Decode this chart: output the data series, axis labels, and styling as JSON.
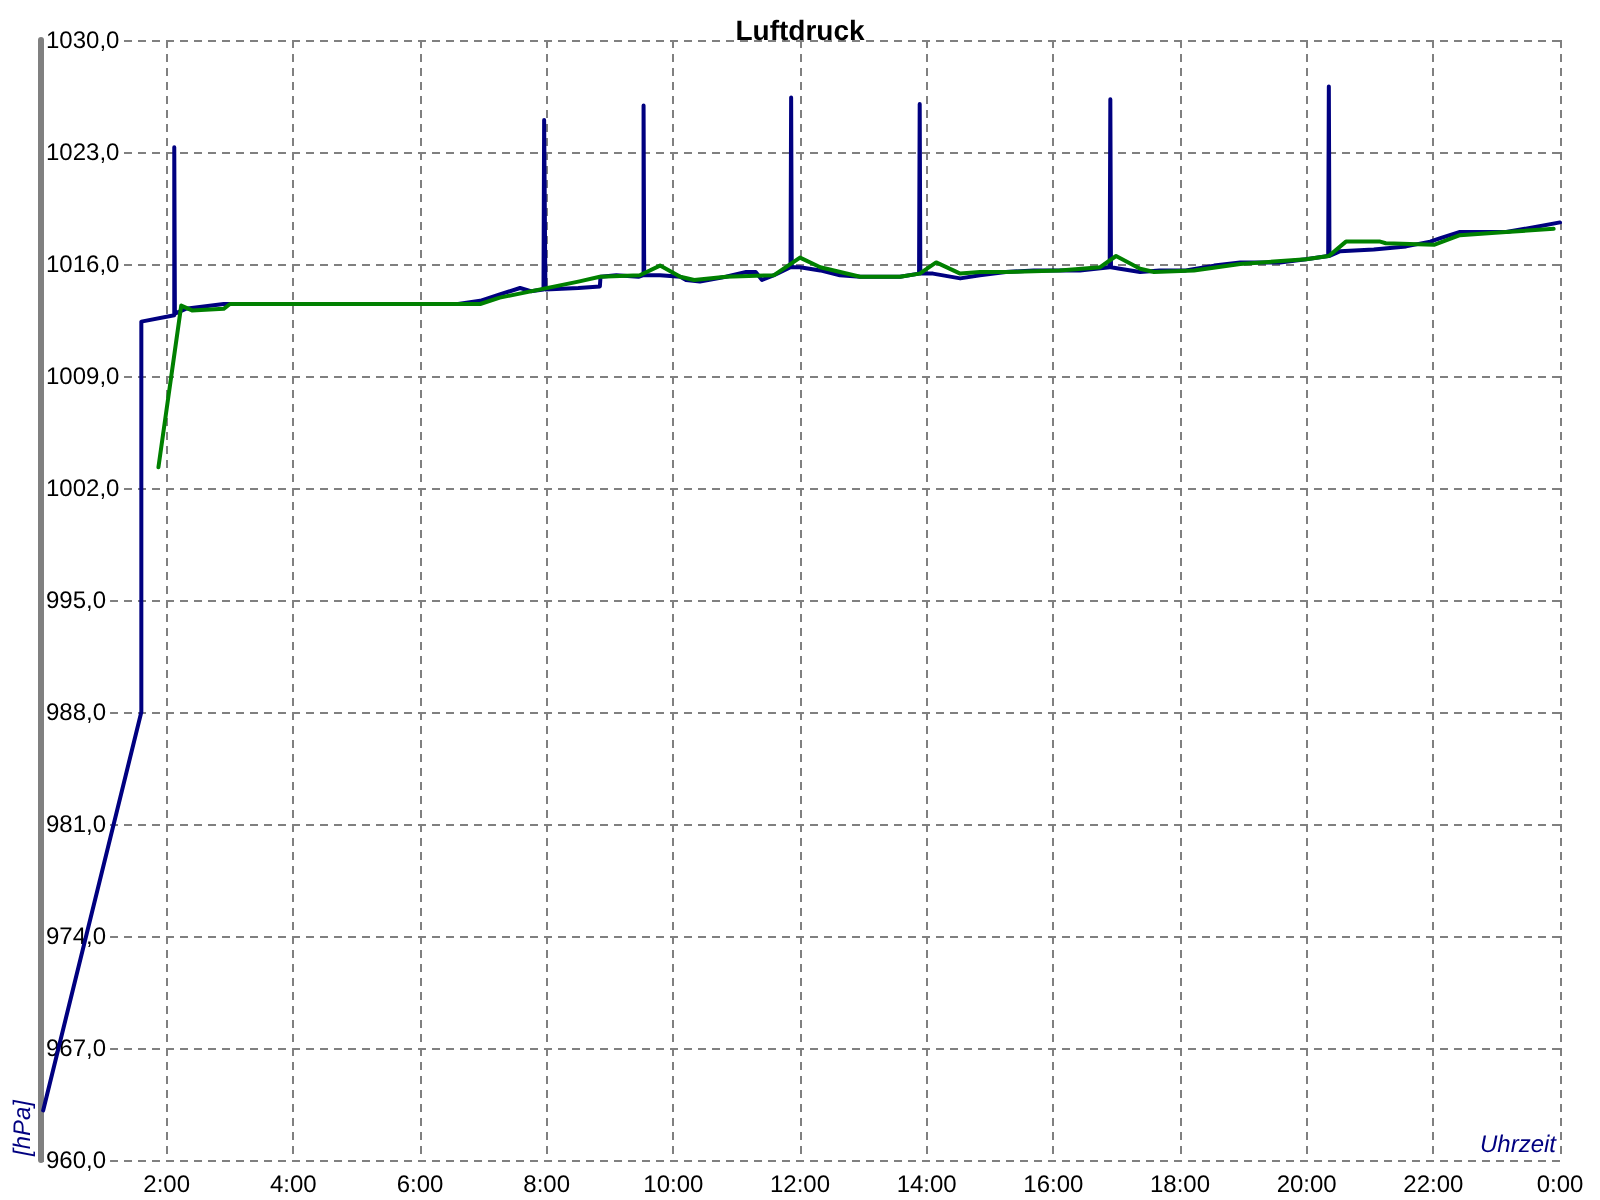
{
  "chart_data": {
    "type": "line",
    "title": "Luftdruck",
    "xlabel": "Uhrzeit",
    "ylabel": "[hPa]",
    "xlim": [
      0,
      24
    ],
    "ylim": [
      960,
      1030
    ],
    "xticks": [
      {
        "value": 2,
        "label": "2:00"
      },
      {
        "value": 4,
        "label": "4:00"
      },
      {
        "value": 6,
        "label": "6:00"
      },
      {
        "value": 8,
        "label": "8:00"
      },
      {
        "value": 10,
        "label": "10:00"
      },
      {
        "value": 12,
        "label": "12:00"
      },
      {
        "value": 14,
        "label": "14:00"
      },
      {
        "value": 16,
        "label": "16:00"
      },
      {
        "value": 18,
        "label": "18:00"
      },
      {
        "value": 20,
        "label": "20:00"
      },
      {
        "value": 22,
        "label": "22:00"
      },
      {
        "value": 24,
        "label": "0:00"
      }
    ],
    "yticks": [
      {
        "value": 960,
        "label": "960,0"
      },
      {
        "value": 967,
        "label": "967,0"
      },
      {
        "value": 974,
        "label": "974,0"
      },
      {
        "value": 981,
        "label": "981,0"
      },
      {
        "value": 988,
        "label": "988,0"
      },
      {
        "value": 995,
        "label": "995,0"
      },
      {
        "value": 1002,
        "label": "1002,0"
      },
      {
        "value": 1009,
        "label": "1009,0"
      },
      {
        "value": 1016,
        "label": "1016,0"
      },
      {
        "value": 1023,
        "label": "1023,0"
      },
      {
        "value": 1030,
        "label": "1030,0"
      }
    ],
    "grid": true,
    "line_style": "solid",
    "series": [
      {
        "color": "#000080",
        "x": [
          0.05,
          1.6,
          1.6,
          2.12,
          2.12,
          2.13,
          2.3,
          2.9,
          6.6,
          6.95,
          7.26,
          7.58,
          7.75,
          7.95,
          7.96,
          7.98,
          8.5,
          8.84,
          8.85,
          9.1,
          9.45,
          9.53,
          9.53,
          9.54,
          9.79,
          10.11,
          10.2,
          10.42,
          10.83,
          11.15,
          11.3,
          11.4,
          11.59,
          11.85,
          11.86,
          11.87,
          12.0,
          12.32,
          12.63,
          12.95,
          13.58,
          13.88,
          13.89,
          13.9,
          14.1,
          14.53,
          14.84,
          15.25,
          15.69,
          16.1,
          16.42,
          16.89,
          16.9,
          16.91,
          17.05,
          17.37,
          17.68,
          18.09,
          18.54,
          18.95,
          19.58,
          19.99,
          20.34,
          20.35,
          20.36,
          20.53,
          21.06,
          21.57,
          21.95,
          22.1,
          22.42,
          23.15,
          23.59,
          24.0
        ],
        "values": [
          963.1,
          988.0,
          1012.4,
          1012.8,
          1023.3,
          1012.9,
          1013.2,
          1013.5,
          1013.5,
          1013.7,
          1014.1,
          1014.5,
          1014.3,
          1014.4,
          1025.0,
          1014.4,
          1014.5,
          1014.6,
          1015.2,
          1015.3,
          1015.2,
          1015.3,
          1025.9,
          1015.3,
          1015.3,
          1015.2,
          1015.0,
          1014.9,
          1015.2,
          1015.5,
          1015.5,
          1015.0,
          1015.3,
          1015.8,
          1026.4,
          1015.8,
          1015.8,
          1015.6,
          1015.3,
          1015.2,
          1015.2,
          1015.4,
          1026.0,
          1015.4,
          1015.4,
          1015.1,
          1015.3,
          1015.5,
          1015.6,
          1015.6,
          1015.6,
          1015.8,
          1026.3,
          1015.8,
          1015.7,
          1015.5,
          1015.6,
          1015.6,
          1015.9,
          1016.1,
          1016.1,
          1016.3,
          1016.5,
          1027.1,
          1016.5,
          1016.8,
          1016.9,
          1017.1,
          1017.4,
          1017.6,
          1018.0,
          1018.0,
          1018.3,
          1018.6
        ]
      },
      {
        "color": "#008000",
        "x": [
          1.87,
          2.23,
          2.4,
          2.9,
          3.0,
          6.95,
          7.26,
          8.5,
          8.84,
          9.47,
          9.79,
          10.11,
          10.33,
          10.83,
          11.59,
          12.0,
          12.32,
          12.95,
          13.58,
          13.89,
          14.15,
          14.53,
          14.84,
          15.25,
          16.1,
          16.74,
          16.99,
          17.37,
          17.59,
          18.22,
          18.95,
          19.99,
          20.35,
          20.62,
          21.16,
          21.25,
          22.01,
          22.42,
          23.15,
          23.9
        ],
        "values": [
          1003.3,
          1013.4,
          1013.1,
          1013.2,
          1013.5,
          1013.5,
          1013.9,
          1014.9,
          1015.2,
          1015.3,
          1015.9,
          1015.2,
          1015.0,
          1015.2,
          1015.3,
          1016.4,
          1015.8,
          1015.2,
          1015.2,
          1015.4,
          1016.1,
          1015.4,
          1015.5,
          1015.5,
          1015.6,
          1015.8,
          1016.5,
          1015.7,
          1015.5,
          1015.6,
          1016.0,
          1016.3,
          1016.5,
          1017.4,
          1017.4,
          1017.3,
          1017.2,
          1017.8,
          1018.0,
          1018.2
        ]
      }
    ]
  }
}
